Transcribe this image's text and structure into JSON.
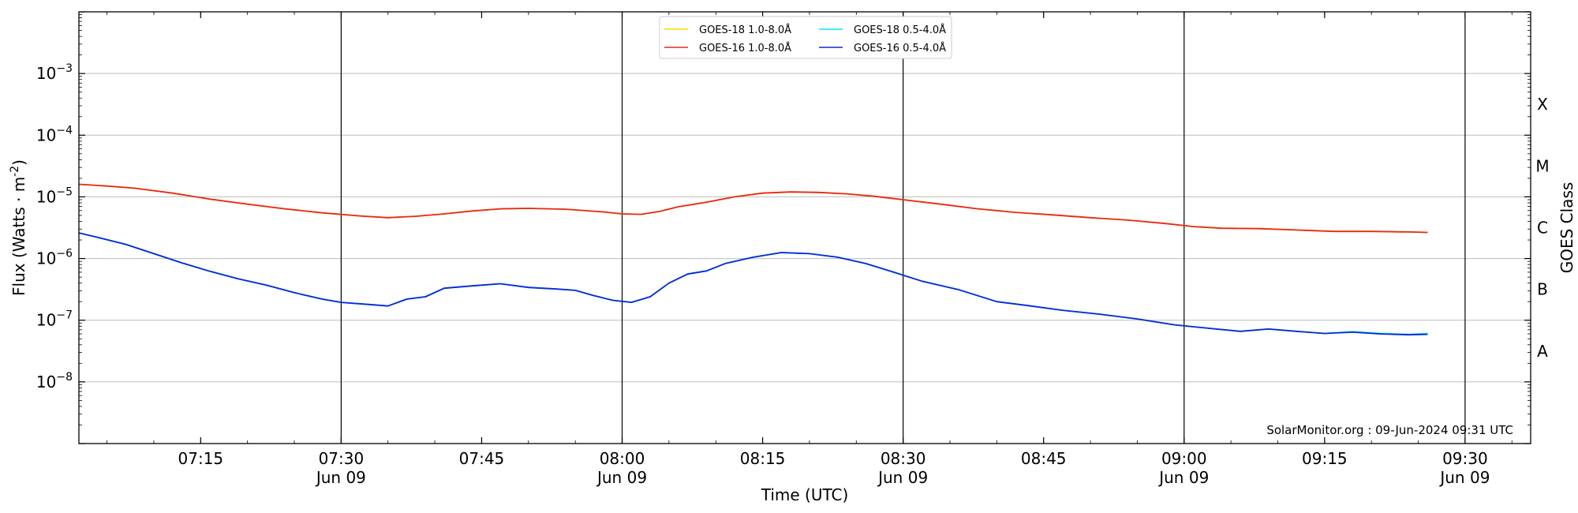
{
  "chart_data": {
    "type": "line",
    "xlabel": "Time (UTC)",
    "ylabel_main": "Flux (Watts · m",
    "ylabel_sup": "-2",
    "ylabel_end": ")",
    "y2label": "GOES Class",
    "yscale": "log",
    "xlim": [
      "07:02",
      "09:37"
    ],
    "ylim": [
      1e-09,
      0.01
    ],
    "grid": "horizontal",
    "legend_position": "top-center",
    "credit": "SolarMonitor.org : 09-Jun-2024 09:31 UTC",
    "x_ticks": [
      {
        "time": "07:15",
        "label": "07:15",
        "sublabel": ""
      },
      {
        "time": "07:30",
        "label": "07:30",
        "sublabel": "Jun 09"
      },
      {
        "time": "07:45",
        "label": "07:45",
        "sublabel": ""
      },
      {
        "time": "08:00",
        "label": "08:00",
        "sublabel": "Jun 09"
      },
      {
        "time": "08:15",
        "label": "08:15",
        "sublabel": ""
      },
      {
        "time": "08:30",
        "label": "08:30",
        "sublabel": "Jun 09"
      },
      {
        "time": "08:45",
        "label": "08:45",
        "sublabel": ""
      },
      {
        "time": "09:00",
        "label": "09:00",
        "sublabel": "Jun 09"
      },
      {
        "time": "09:15",
        "label": "09:15",
        "sublabel": ""
      },
      {
        "time": "09:30",
        "label": "09:30",
        "sublabel": "Jun 09"
      }
    ],
    "vertical_lines": [
      "07:30",
      "08:00",
      "08:30",
      "09:00",
      "09:30"
    ],
    "y_ticks": [
      {
        "value": 1e-08,
        "base": "10",
        "exp": "−8"
      },
      {
        "value": 1e-07,
        "base": "10",
        "exp": "−7"
      },
      {
        "value": 1e-06,
        "base": "10",
        "exp": "−6"
      },
      {
        "value": 1e-05,
        "base": "10",
        "exp": "−5"
      },
      {
        "value": 0.0001,
        "base": "10",
        "exp": "−4"
      },
      {
        "value": 0.001,
        "base": "10",
        "exp": "−3"
      }
    ],
    "goes_classes": [
      {
        "label": "A",
        "value": 3.16e-08
      },
      {
        "label": "B",
        "value": 3.16e-07
      },
      {
        "label": "C",
        "value": 3.16e-06
      },
      {
        "label": "M",
        "value": 3.16e-05
      },
      {
        "label": "X",
        "value": 0.000316
      }
    ],
    "series": [
      {
        "name": "GOES-18 1.0-8.0Å",
        "color": "#ffd700",
        "points": [
          [
            "07:02",
            1.6e-05
          ],
          [
            "07:05",
            1.5e-05
          ],
          [
            "07:08",
            1.38e-05
          ],
          [
            "07:12",
            1.15e-05
          ],
          [
            "07:16",
            9.2e-06
          ],
          [
            "07:20",
            7.6e-06
          ],
          [
            "07:24",
            6.4e-06
          ],
          [
            "07:28",
            5.5e-06
          ],
          [
            "07:32",
            4.9e-06
          ],
          [
            "07:35",
            4.6e-06
          ],
          [
            "07:38",
            4.85e-06
          ],
          [
            "07:41",
            5.3e-06
          ],
          [
            "07:44",
            5.9e-06
          ],
          [
            "07:47",
            6.4e-06
          ],
          [
            "07:50",
            6.5e-06
          ],
          [
            "07:54",
            6.3e-06
          ],
          [
            "07:58",
            5.7e-06
          ],
          [
            "08:00",
            5.3e-06
          ],
          [
            "08:02",
            5.2e-06
          ],
          [
            "08:04",
            5.8e-06
          ],
          [
            "08:06",
            6.9e-06
          ],
          [
            "08:09",
            8.2e-06
          ],
          [
            "08:12",
            1e-05
          ],
          [
            "08:15",
            1.15e-05
          ],
          [
            "08:18",
            1.2e-05
          ],
          [
            "08:21",
            1.18e-05
          ],
          [
            "08:24",
            1.12e-05
          ],
          [
            "08:27",
            1.02e-05
          ],
          [
            "08:30",
            9e-06
          ],
          [
            "08:34",
            7.6e-06
          ],
          [
            "08:38",
            6.4e-06
          ],
          [
            "08:42",
            5.6e-06
          ],
          [
            "08:46",
            5.1e-06
          ],
          [
            "08:50",
            4.6e-06
          ],
          [
            "08:54",
            4.2e-06
          ],
          [
            "08:58",
            3.7e-06
          ],
          [
            "09:01",
            3.3e-06
          ],
          [
            "09:04",
            3.1e-06
          ],
          [
            "09:08",
            3.05e-06
          ],
          [
            "09:12",
            2.9e-06
          ],
          [
            "09:16",
            2.75e-06
          ],
          [
            "09:20",
            2.75e-06
          ],
          [
            "09:24",
            2.7e-06
          ],
          [
            "09:26",
            2.65e-06
          ]
        ]
      },
      {
        "name": "GOES-18 0.5-4.0Å",
        "color": "#00e5ff",
        "points": [
          [
            "07:02",
            2.6e-06
          ],
          [
            "07:04",
            2.2e-06
          ],
          [
            "07:07",
            1.7e-06
          ],
          [
            "07:10",
            1.2e-06
          ],
          [
            "07:13",
            8.5e-07
          ],
          [
            "07:16",
            6.2e-07
          ],
          [
            "07:19",
            4.7e-07
          ],
          [
            "07:22",
            3.7e-07
          ],
          [
            "07:25",
            2.8e-07
          ],
          [
            "07:28",
            2.2e-07
          ],
          [
            "07:30",
            1.95e-07
          ],
          [
            "07:33",
            1.8e-07
          ],
          [
            "07:35",
            1.7e-07
          ],
          [
            "07:37",
            2.2e-07
          ],
          [
            "07:39",
            2.4e-07
          ],
          [
            "07:41",
            3.3e-07
          ],
          [
            "07:44",
            3.6e-07
          ],
          [
            "07:47",
            3.9e-07
          ],
          [
            "07:50",
            3.4e-07
          ],
          [
            "07:53",
            3.2e-07
          ],
          [
            "07:55",
            3.05e-07
          ],
          [
            "07:57",
            2.5e-07
          ],
          [
            "07:59",
            2.1e-07
          ],
          [
            "08:01",
            1.95e-07
          ],
          [
            "08:03",
            2.4e-07
          ],
          [
            "08:05",
            4e-07
          ],
          [
            "08:07",
            5.6e-07
          ],
          [
            "08:09",
            6.3e-07
          ],
          [
            "08:11",
            8.3e-07
          ],
          [
            "08:14",
            1.05e-06
          ],
          [
            "08:17",
            1.25e-06
          ],
          [
            "08:20",
            1.2e-06
          ],
          [
            "08:23",
            1.05e-06
          ],
          [
            "08:26",
            8.3e-07
          ],
          [
            "08:29",
            6e-07
          ],
          [
            "08:32",
            4.3e-07
          ],
          [
            "08:36",
            3.1e-07
          ],
          [
            "08:40",
            2e-07
          ],
          [
            "08:43",
            1.75e-07
          ],
          [
            "08:47",
            1.45e-07
          ],
          [
            "08:51",
            1.25e-07
          ],
          [
            "08:55",
            1.05e-07
          ],
          [
            "08:59",
            8.4e-08
          ],
          [
            "09:03",
            7.3e-08
          ],
          [
            "09:06",
            6.6e-08
          ],
          [
            "09:09",
            7.2e-08
          ],
          [
            "09:12",
            6.6e-08
          ],
          [
            "09:15",
            6.1e-08
          ],
          [
            "09:18",
            6.5e-08
          ],
          [
            "09:21",
            6.1e-08
          ],
          [
            "09:24",
            5.9e-08
          ],
          [
            "09:26",
            6.1e-08
          ]
        ]
      },
      {
        "name": "GOES-16 1.0-8.0Å",
        "color": "#e8291c",
        "points": [
          [
            "07:02",
            1.6e-05
          ],
          [
            "07:05",
            1.5e-05
          ],
          [
            "07:08",
            1.38e-05
          ],
          [
            "07:12",
            1.15e-05
          ],
          [
            "07:16",
            9.2e-06
          ],
          [
            "07:20",
            7.6e-06
          ],
          [
            "07:24",
            6.4e-06
          ],
          [
            "07:28",
            5.5e-06
          ],
          [
            "07:32",
            4.9e-06
          ],
          [
            "07:35",
            4.6e-06
          ],
          [
            "07:38",
            4.85e-06
          ],
          [
            "07:41",
            5.3e-06
          ],
          [
            "07:44",
            5.9e-06
          ],
          [
            "07:47",
            6.4e-06
          ],
          [
            "07:50",
            6.5e-06
          ],
          [
            "07:54",
            6.3e-06
          ],
          [
            "07:58",
            5.7e-06
          ],
          [
            "08:00",
            5.3e-06
          ],
          [
            "08:02",
            5.2e-06
          ],
          [
            "08:04",
            5.8e-06
          ],
          [
            "08:06",
            6.9e-06
          ],
          [
            "08:09",
            8.2e-06
          ],
          [
            "08:12",
            1e-05
          ],
          [
            "08:15",
            1.15e-05
          ],
          [
            "08:18",
            1.2e-05
          ],
          [
            "08:21",
            1.18e-05
          ],
          [
            "08:24",
            1.12e-05
          ],
          [
            "08:27",
            1.02e-05
          ],
          [
            "08:30",
            9e-06
          ],
          [
            "08:34",
            7.6e-06
          ],
          [
            "08:38",
            6.4e-06
          ],
          [
            "08:42",
            5.6e-06
          ],
          [
            "08:46",
            5.1e-06
          ],
          [
            "08:50",
            4.6e-06
          ],
          [
            "08:54",
            4.2e-06
          ],
          [
            "08:58",
            3.7e-06
          ],
          [
            "09:01",
            3.3e-06
          ],
          [
            "09:04",
            3.1e-06
          ],
          [
            "09:08",
            3.05e-06
          ],
          [
            "09:12",
            2.9e-06
          ],
          [
            "09:16",
            2.75e-06
          ],
          [
            "09:20",
            2.75e-06
          ],
          [
            "09:24",
            2.7e-06
          ],
          [
            "09:26",
            2.65e-06
          ]
        ]
      },
      {
        "name": "GOES-16 0.5-4.0Å",
        "color": "#0a28d8",
        "points": [
          [
            "07:02",
            2.6e-06
          ],
          [
            "07:04",
            2.2e-06
          ],
          [
            "07:07",
            1.7e-06
          ],
          [
            "07:10",
            1.2e-06
          ],
          [
            "07:13",
            8.5e-07
          ],
          [
            "07:16",
            6.2e-07
          ],
          [
            "07:19",
            4.7e-07
          ],
          [
            "07:22",
            3.7e-07
          ],
          [
            "07:25",
            2.8e-07
          ],
          [
            "07:28",
            2.2e-07
          ],
          [
            "07:30",
            1.95e-07
          ],
          [
            "07:33",
            1.8e-07
          ],
          [
            "07:35",
            1.7e-07
          ],
          [
            "07:37",
            2.2e-07
          ],
          [
            "07:39",
            2.4e-07
          ],
          [
            "07:41",
            3.3e-07
          ],
          [
            "07:44",
            3.6e-07
          ],
          [
            "07:47",
            3.9e-07
          ],
          [
            "07:50",
            3.4e-07
          ],
          [
            "07:53",
            3.2e-07
          ],
          [
            "07:55",
            3.05e-07
          ],
          [
            "07:57",
            2.5e-07
          ],
          [
            "07:59",
            2.1e-07
          ],
          [
            "08:01",
            1.95e-07
          ],
          [
            "08:03",
            2.4e-07
          ],
          [
            "08:05",
            4e-07
          ],
          [
            "08:07",
            5.6e-07
          ],
          [
            "08:09",
            6.3e-07
          ],
          [
            "08:11",
            8.3e-07
          ],
          [
            "08:14",
            1.05e-06
          ],
          [
            "08:17",
            1.25e-06
          ],
          [
            "08:20",
            1.2e-06
          ],
          [
            "08:23",
            1.05e-06
          ],
          [
            "08:26",
            8.3e-07
          ],
          [
            "08:29",
            6e-07
          ],
          [
            "08:32",
            4.3e-07
          ],
          [
            "08:36",
            3.1e-07
          ],
          [
            "08:40",
            2e-07
          ],
          [
            "08:43",
            1.75e-07
          ],
          [
            "08:47",
            1.45e-07
          ],
          [
            "08:51",
            1.25e-07
          ],
          [
            "08:55",
            1.05e-07
          ],
          [
            "08:59",
            8.4e-08
          ],
          [
            "09:03",
            7.3e-08
          ],
          [
            "09:06",
            6.6e-08
          ],
          [
            "09:09",
            7.2e-08
          ],
          [
            "09:12",
            6.6e-08
          ],
          [
            "09:15",
            6.1e-08
          ],
          [
            "09:18",
            6.4e-08
          ],
          [
            "09:21",
            6e-08
          ],
          [
            "09:24",
            5.8e-08
          ],
          [
            "09:26",
            5.9e-08
          ]
        ]
      }
    ],
    "legend_order": [
      0,
      1,
      2,
      3
    ]
  }
}
